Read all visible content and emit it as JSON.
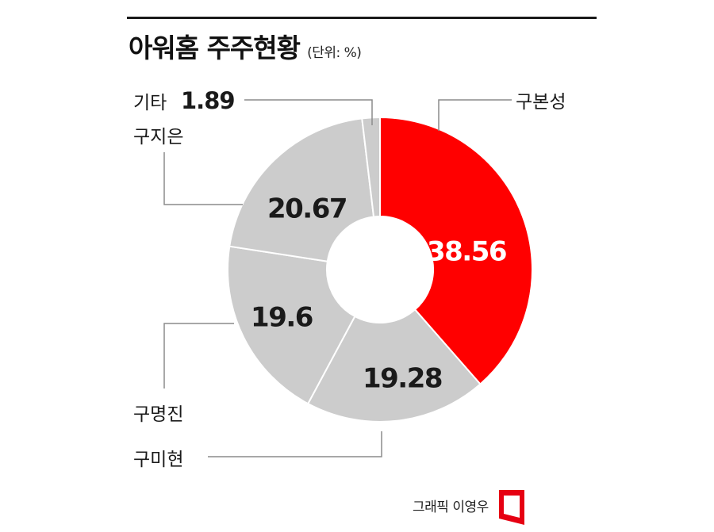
{
  "header": {
    "title": "아워홈 주주현황",
    "unit": "(단위: %)"
  },
  "chart_data": {
    "type": "pie",
    "title": "아워홈 주주현황",
    "unit": "(단위: %)",
    "slices": [
      {
        "name": "구본성",
        "value": 38.56,
        "label": "38.56",
        "color": "#ff0000"
      },
      {
        "name": "구미현",
        "value": 19.28,
        "label": "19.28",
        "color": "#cccccc"
      },
      {
        "name": "구명진",
        "value": 19.6,
        "label": "19.6",
        "color": "#cccccc"
      },
      {
        "name": "구지은",
        "value": 20.67,
        "label": "20.67",
        "color": "#cccccc"
      },
      {
        "name": "기타",
        "value": 1.89,
        "label": "1.89",
        "color": "#cccccc"
      }
    ]
  },
  "footer": {
    "credit": "그래픽 이영우"
  },
  "colors": {
    "accent": "#ff0000",
    "slice_gray": "#cccccc",
    "leader_line": "#8c8c8c",
    "text": "#1a1a1a"
  }
}
